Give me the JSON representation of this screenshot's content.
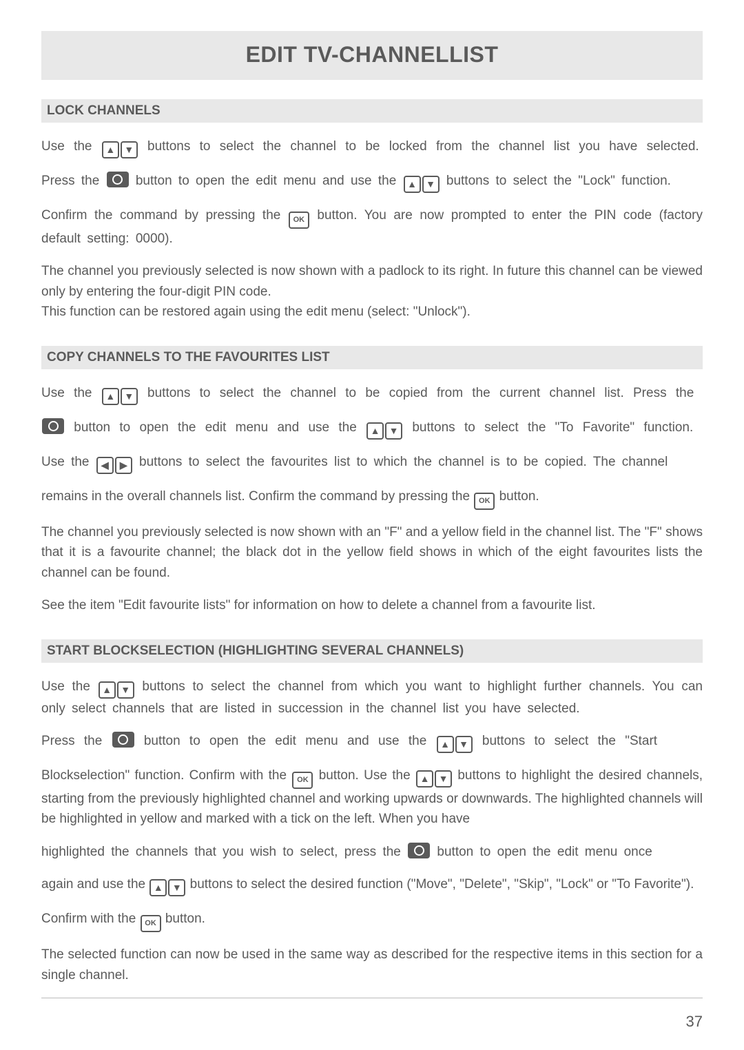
{
  "page": {
    "title": "EDIT TV-CHANNELLIST",
    "page_number": "37"
  },
  "icons": {
    "up": "▲",
    "down": "▼",
    "left": "◀",
    "right": "▶",
    "ok": "OK"
  },
  "sections": {
    "lock": {
      "heading": "LOCK CHANNELS",
      "p1a": "Use the ",
      "p1b": " buttons to select the channel to be locked from the channel list you have selected.",
      "p2a": "Press the ",
      "p2b": " button to open the edit menu and use the ",
      "p2c": " buttons to select the \"Lock\" function.",
      "p3a": "Confirm the command by pressing the ",
      "p3b": " button. You are now prompted to enter the PIN code (factory default setting: 0000).",
      "p4": "The channel you previously selected is now shown with a padlock to its right. In future this channel can be viewed only by entering the four-digit PIN code.",
      "p5": "This function can be restored again using the edit menu (select: \"Unlock\")."
    },
    "copy": {
      "heading": "COPY CHANNELS TO THE FAVOURITES LIST",
      "p1a": "Use the ",
      "p1b": " buttons to select the channel to be copied from the current channel list. Press the",
      "p2a": " button to open the edit menu and use the ",
      "p2b": " buttons to select the \"To Favorite\" function.",
      "p3a": "Use the ",
      "p3b": " buttons to select the favourites list to which the channel is to be copied. The channel",
      "p4a": "remains in the overall channels list. Confirm the command by pressing the ",
      "p4b": " button.",
      "p5": "The channel you previously selected is now shown with an \"F\" and a yellow field in the channel list. The \"F\" shows that it is a favourite channel; the black dot in the yellow field shows in which of the eight favourites lists the channel can be found.",
      "p6": "See the item \"Edit favourite lists\" for information on how to delete a channel from a favourite list."
    },
    "block": {
      "heading": "START BLOCKSELECTION (HIGHLIGHTING SEVERAL CHANNELS)",
      "p1a": "Use the ",
      "p1b": " buttons to select the channel from which you want to highlight further channels. You can only select channels that are listed in succession in the channel list you have selected.",
      "p2a": "Press the ",
      "p2b": " button to open the edit menu and use the ",
      "p2c": " buttons to select the \"Start",
      "p3a": "Blockselection\" function. Confirm with the ",
      "p3b": " button. Use the ",
      "p3c": " buttons to highlight the desired channels, starting from the previously highlighted channel and working upwards or downwards. The highlighted channels will be highlighted in yellow and marked with a tick on the left. When you have",
      "p4a": "highlighted the channels that you wish to select, press the ",
      "p4b": " button to open the edit menu once",
      "p5a": "again and use the ",
      "p5b": " buttons to select the desired function (\"Move\", \"Delete\", \"Skip\", \"Lock\" or \"To Favorite\").",
      "p6a": "Confirm with the ",
      "p6b": " button.",
      "p7": "The selected function can now be used in the same way as described for the respective items in this section for a single channel."
    }
  }
}
